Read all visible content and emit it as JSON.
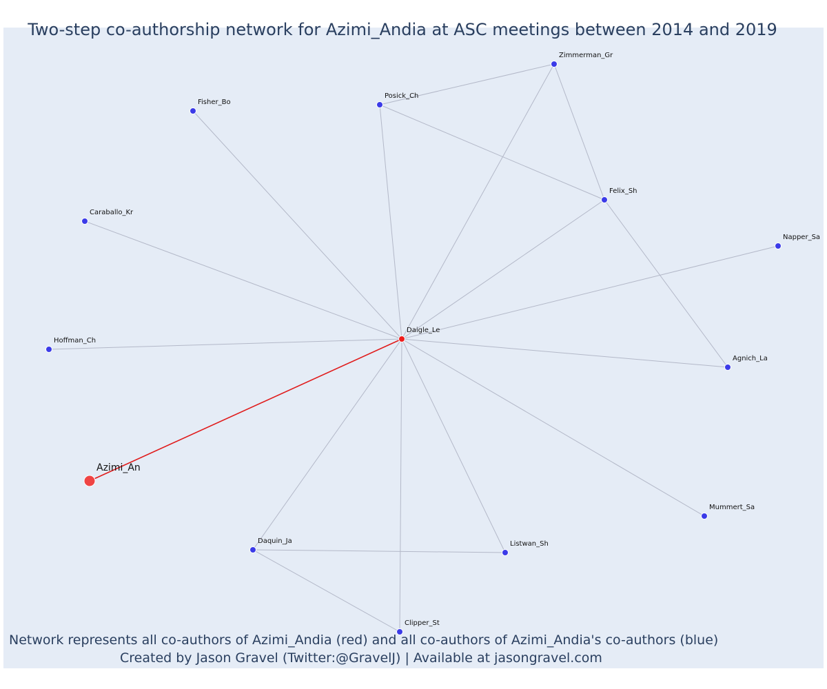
{
  "title": "Two-step co-authorship network for Azimi_Andia at ASC meetings between 2014 and 2019",
  "caption": {
    "line1": "Network represents all co-authors of Azimi_Andia (red) and all co-authors of Azimi_Andia's co-authors (blue)",
    "line2": "Created by Jason Gravel (Twitter:@GravelJ) | Available at jasongravel.com"
  },
  "colors": {
    "plot_background": "#e5ecf6",
    "focus_node": "#ef4444",
    "first_step_node": "#ef1c1c",
    "second_step_node": "#3b3be8",
    "focus_edge": "#e01b1b",
    "edge": "#b3b8c8",
    "text": "#2a3f5f"
  },
  "nodes": [
    {
      "id": "Azimi_An",
      "label": "Azimi_An",
      "role": "focus"
    },
    {
      "id": "Daigle_Le",
      "label": "Daigle_Le",
      "role": "coauthor"
    },
    {
      "id": "Zimmerman_Gr",
      "label": "Zimmerman_Gr",
      "role": "second"
    },
    {
      "id": "Posick_Ch",
      "label": "Posick_Ch",
      "role": "second"
    },
    {
      "id": "Fisher_Bo",
      "label": "Fisher_Bo",
      "role": "second"
    },
    {
      "id": "Felix_Sh",
      "label": "Felix_Sh",
      "role": "second"
    },
    {
      "id": "Caraballo_Kr",
      "label": "Caraballo_Kr",
      "role": "second"
    },
    {
      "id": "Napper_Sa",
      "label": "Napper_Sa",
      "role": "second"
    },
    {
      "id": "Hoffman_Ch",
      "label": "Hoffman_Ch",
      "role": "second"
    },
    {
      "id": "Agnich_La",
      "label": "Agnich_La",
      "role": "second"
    },
    {
      "id": "Mummert_Sa",
      "label": "Mummert_Sa",
      "role": "second"
    },
    {
      "id": "Daquin_Ja",
      "label": "Daquin_Ja",
      "role": "second"
    },
    {
      "id": "Listwan_Sh",
      "label": "Listwan_Sh",
      "role": "second"
    },
    {
      "id": "Clipper_St",
      "label": "Clipper_St",
      "role": "second"
    }
  ],
  "edges": [
    [
      "Azimi_An",
      "Daigle_Le"
    ],
    [
      "Daigle_Le",
      "Zimmerman_Gr"
    ],
    [
      "Daigle_Le",
      "Posick_Ch"
    ],
    [
      "Daigle_Le",
      "Fisher_Bo"
    ],
    [
      "Daigle_Le",
      "Felix_Sh"
    ],
    [
      "Daigle_Le",
      "Caraballo_Kr"
    ],
    [
      "Daigle_Le",
      "Napper_Sa"
    ],
    [
      "Daigle_Le",
      "Hoffman_Ch"
    ],
    [
      "Daigle_Le",
      "Agnich_La"
    ],
    [
      "Daigle_Le",
      "Mummert_Sa"
    ],
    [
      "Daigle_Le",
      "Daquin_Ja"
    ],
    [
      "Daigle_Le",
      "Listwan_Sh"
    ],
    [
      "Daigle_Le",
      "Clipper_St"
    ],
    [
      "Posick_Ch",
      "Zimmerman_Gr"
    ],
    [
      "Posick_Ch",
      "Felix_Sh"
    ],
    [
      "Zimmerman_Gr",
      "Felix_Sh"
    ],
    [
      "Felix_Sh",
      "Agnich_La"
    ],
    [
      "Daquin_Ja",
      "Listwan_Sh"
    ],
    [
      "Daquin_Ja",
      "Clipper_St"
    ]
  ]
}
